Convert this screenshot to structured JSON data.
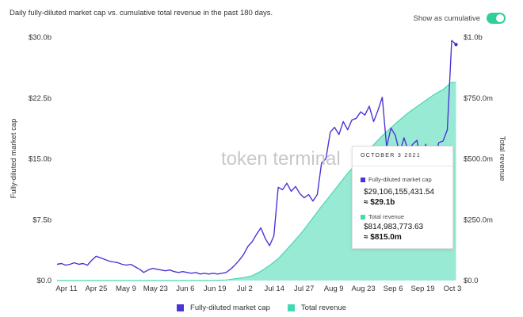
{
  "chart_title": "Daily fully-diluted market cap vs. cumulative total revenue in the past 180 days.",
  "toggle": {
    "label": "Show as cumulative",
    "state": "on"
  },
  "watermark": "token terminal",
  "colors": {
    "market_cap": "#4b35d6",
    "revenue": "#46d8b2",
    "toggle": "#2fcf95"
  },
  "tooltip": {
    "date": "OCTOBER 3 2021",
    "mc_label": "Fully-diluted market cap",
    "mc_value": "$29,106,155,431.54",
    "mc_short": "≈ $29.1b",
    "rev_label": "Total revenue",
    "rev_value": "$814,983,773.63",
    "rev_short": "≈ $815.0m"
  },
  "legend": [
    {
      "name": "Fully-diluted market cap",
      "color": "#4b35d6"
    },
    {
      "name": "Total revenue",
      "color": "#46d8b2"
    }
  ],
  "chart_data": {
    "type": "line",
    "x_ticks": [
      "Apr 11",
      "Apr 25",
      "May 9",
      "May 23",
      "Jun 6",
      "Jun 19",
      "Jul 2",
      "Jul 14",
      "Jul 27",
      "Aug 9",
      "Aug 23",
      "Sep 6",
      "Sep 19",
      "Oct 3"
    ],
    "ylabel_left": "Fully-diluted market cap",
    "ylabel_right": "Total revenue",
    "y_left_ticks": [
      "$0.0",
      "$7.5b",
      "$15.0b",
      "$22.5b",
      "$30.0b"
    ],
    "y_right_ticks": [
      "$0.0",
      "$250.0m",
      "$500.0m",
      "$750.0m",
      "$1.0b"
    ],
    "ylim_left": [
      0,
      30
    ],
    "ylim_right": [
      0,
      1000
    ],
    "grid": false,
    "legend_position": "bottom",
    "series": [
      {
        "name": "Fully-diluted market cap",
        "kind": "line",
        "axis": "left",
        "unit": "$b",
        "points": [
          [
            0,
            2.0
          ],
          [
            6,
            2.1
          ],
          [
            12,
            1.9
          ],
          [
            18,
            2.0
          ],
          [
            24,
            2.2
          ],
          [
            30,
            2.0
          ],
          [
            36,
            2.1
          ],
          [
            42,
            1.9
          ],
          [
            48,
            2.5
          ],
          [
            54,
            3.0
          ],
          [
            60,
            2.8
          ],
          [
            66,
            2.6
          ],
          [
            72,
            2.4
          ],
          [
            78,
            2.3
          ],
          [
            84,
            2.2
          ],
          [
            90,
            2.0
          ],
          [
            96,
            1.9
          ],
          [
            102,
            2.0
          ],
          [
            108,
            1.7
          ],
          [
            114,
            1.4
          ],
          [
            120,
            1.0
          ],
          [
            126,
            1.3
          ],
          [
            132,
            1.5
          ],
          [
            138,
            1.4
          ],
          [
            144,
            1.3
          ],
          [
            150,
            1.2
          ],
          [
            156,
            1.3
          ],
          [
            162,
            1.1
          ],
          [
            168,
            1.0
          ],
          [
            174,
            1.1
          ],
          [
            180,
            1.0
          ],
          [
            186,
            0.9
          ],
          [
            192,
            1.0
          ],
          [
            198,
            0.8
          ],
          [
            204,
            0.9
          ],
          [
            210,
            0.8
          ],
          [
            216,
            0.9
          ],
          [
            222,
            0.8
          ],
          [
            228,
            0.9
          ],
          [
            234,
            1.0
          ],
          [
            240,
            1.4
          ],
          [
            246,
            1.9
          ],
          [
            252,
            2.5
          ],
          [
            258,
            3.2
          ],
          [
            264,
            4.2
          ],
          [
            270,
            4.8
          ],
          [
            276,
            5.7
          ],
          [
            282,
            6.5
          ],
          [
            288,
            5.2
          ],
          [
            294,
            4.3
          ],
          [
            300,
            5.5
          ],
          [
            306,
            11.5
          ],
          [
            312,
            11.2
          ],
          [
            318,
            12.0
          ],
          [
            324,
            11.0
          ],
          [
            330,
            11.6
          ],
          [
            336,
            10.7
          ],
          [
            342,
            10.2
          ],
          [
            348,
            10.6
          ],
          [
            354,
            9.8
          ],
          [
            360,
            10.6
          ],
          [
            366,
            14.5
          ],
          [
            372,
            15.0
          ],
          [
            378,
            18.3
          ],
          [
            384,
            18.9
          ],
          [
            390,
            18.0
          ],
          [
            396,
            19.6
          ],
          [
            402,
            18.6
          ],
          [
            408,
            19.8
          ],
          [
            414,
            20.0
          ],
          [
            420,
            20.8
          ],
          [
            426,
            20.4
          ],
          [
            432,
            21.5
          ],
          [
            438,
            19.6
          ],
          [
            444,
            21.0
          ],
          [
            450,
            22.6
          ],
          [
            456,
            16.5
          ],
          [
            462,
            18.8
          ],
          [
            468,
            17.9
          ],
          [
            474,
            15.7
          ],
          [
            480,
            17.6
          ],
          [
            486,
            16.0
          ],
          [
            492,
            16.8
          ],
          [
            498,
            17.3
          ],
          [
            504,
            14.2
          ],
          [
            510,
            16.8
          ],
          [
            516,
            13.6
          ],
          [
            522,
            14.2
          ],
          [
            528,
            17.0
          ],
          [
            534,
            17.2
          ],
          [
            540,
            18.6
          ],
          [
            546,
            29.6
          ],
          [
            552,
            29.1
          ]
        ]
      },
      {
        "name": "Total revenue",
        "kind": "area",
        "axis": "right",
        "unit": "$m",
        "points": [
          [
            0,
            0
          ],
          [
            60,
            0
          ],
          [
            120,
            0
          ],
          [
            180,
            0
          ],
          [
            210,
            0
          ],
          [
            234,
            2
          ],
          [
            258,
            12
          ],
          [
            270,
            20
          ],
          [
            282,
            38
          ],
          [
            294,
            62
          ],
          [
            306,
            90
          ],
          [
            318,
            128
          ],
          [
            330,
            168
          ],
          [
            342,
            210
          ],
          [
            354,
            258
          ],
          [
            366,
            305
          ],
          [
            378,
            350
          ],
          [
            390,
            395
          ],
          [
            402,
            440
          ],
          [
            414,
            480
          ],
          [
            426,
            520
          ],
          [
            438,
            558
          ],
          [
            450,
            595
          ],
          [
            462,
            628
          ],
          [
            474,
            660
          ],
          [
            486,
            690
          ],
          [
            498,
            715
          ],
          [
            510,
            740
          ],
          [
            522,
            765
          ],
          [
            534,
            785
          ],
          [
            540,
            800
          ],
          [
            546,
            815
          ],
          [
            552,
            815
          ]
        ]
      }
    ]
  }
}
